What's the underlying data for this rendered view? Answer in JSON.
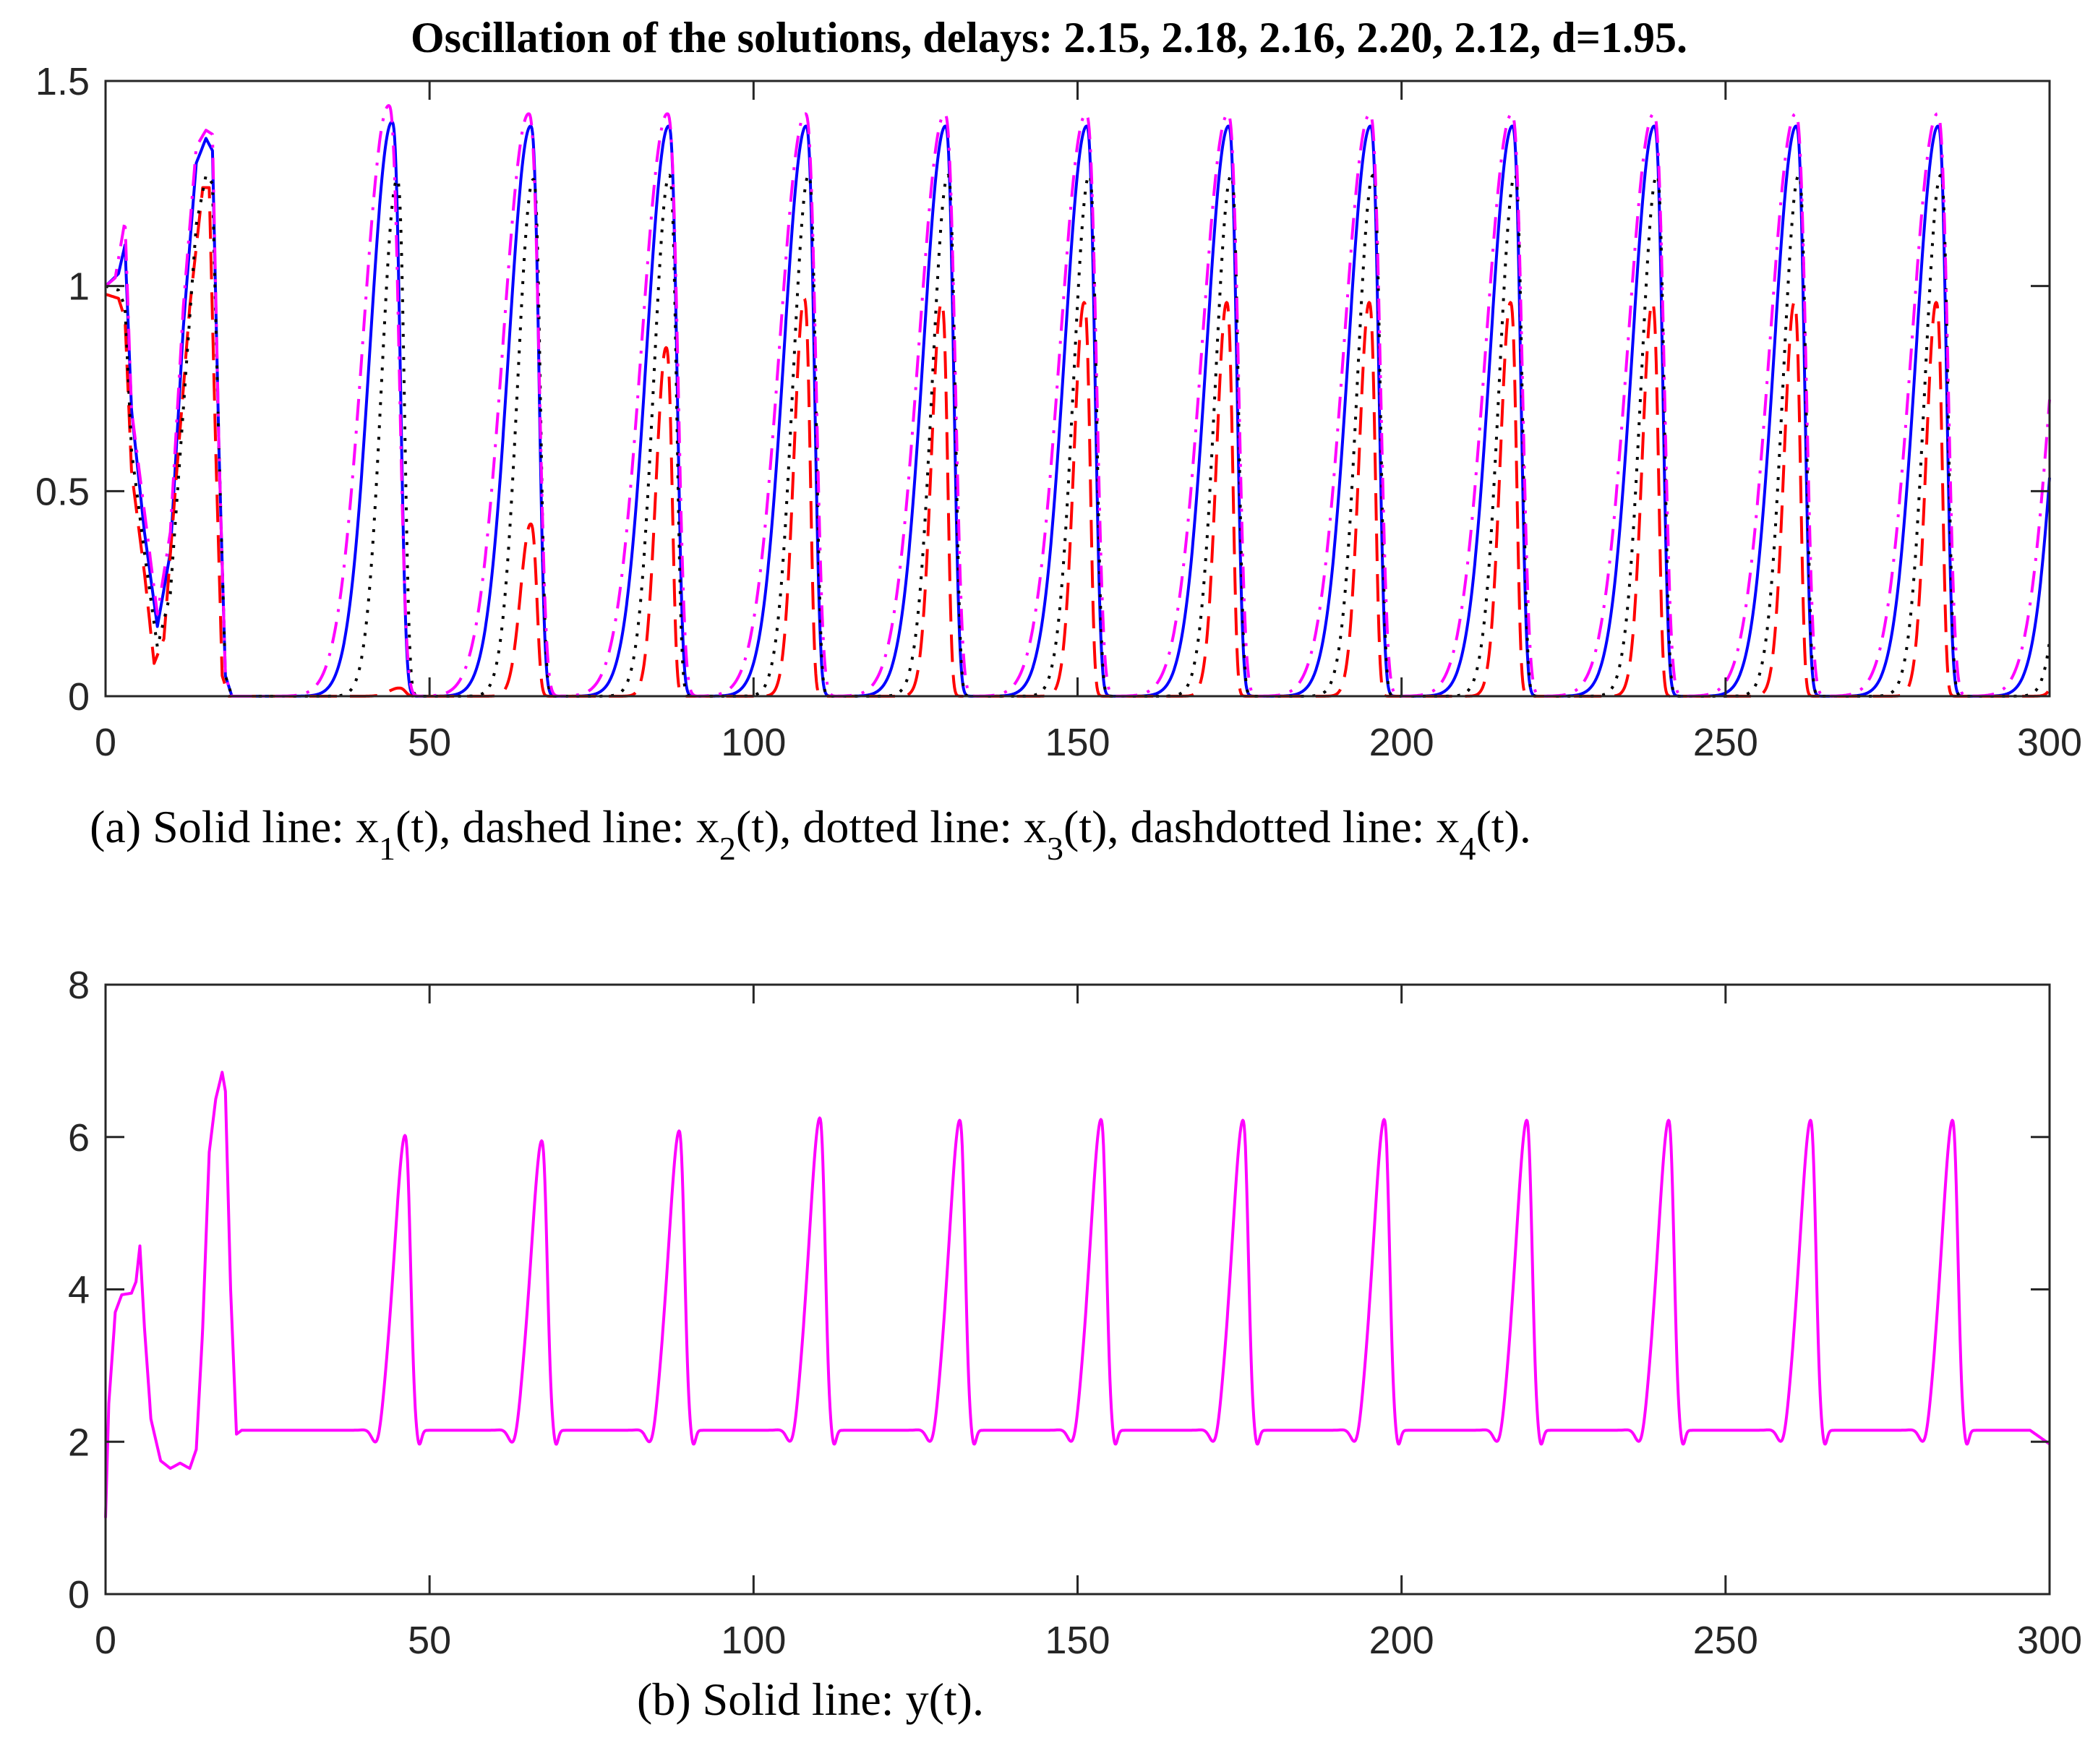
{
  "chart_data": [
    {
      "type": "line",
      "title": "Oscillation of the solutions, delays: 2.15, 2.18, 2.16, 2.20, 2.12, d=1.95.",
      "caption": {
        "prefix": "(a) Solid line: x",
        "parts": [
          {
            "sub": "1",
            "text": "(t), dashed line: x"
          },
          {
            "sub": "2",
            "text": "(t), dotted line: x"
          },
          {
            "sub": "3",
            "text": "(t), dashdotted line: x"
          },
          {
            "sub": "4",
            "text": "(t)."
          }
        ]
      },
      "xlabel": "",
      "ylabel": "",
      "xlim": [
        0,
        300
      ],
      "ylim": [
        0,
        1.5
      ],
      "xticks": [
        "0",
        "50",
        "100",
        "150",
        "200",
        "250",
        "300"
      ],
      "xtick_values": [
        0,
        50,
        100,
        150,
        200,
        250,
        300
      ],
      "yticks": [
        "0",
        "0.5",
        "1",
        "1.5"
      ],
      "ytick_values": [
        0,
        0.5,
        1,
        1.5
      ],
      "grid": false,
      "period": 21.9,
      "series": [
        {
          "name": "x1(t)",
          "style": "solid",
          "color": "#0000ff",
          "initial_points": [
            [
              0,
              1.0
            ],
            [
              2,
              1.03
            ],
            [
              3,
              1.1
            ],
            [
              4,
              0.7
            ],
            [
              6,
              0.4
            ],
            [
              8,
              0.17
            ],
            [
              10,
              0.35
            ],
            [
              12,
              0.9
            ],
            [
              14,
              1.3
            ],
            [
              15.5,
              1.36
            ],
            [
              16.5,
              1.33
            ],
            [
              17.5,
              0.6
            ],
            [
              18.5,
              0.05
            ],
            [
              19.5,
              0.0
            ]
          ],
          "peak_times": [
            44.2,
            65.6,
            86.9,
            108.1,
            129.6,
            151.4,
            173.3,
            195.2,
            217.1,
            239.0,
            260.9,
            282.8
          ],
          "peak_values": [
            1.4,
            1.39,
            1.39,
            1.39,
            1.39,
            1.39,
            1.39,
            1.39,
            1.39,
            1.39,
            1.39,
            1.39
          ],
          "rise": 4.8,
          "fall": 1.6
        },
        {
          "name": "x2(t)",
          "style": "dashed",
          "color": "#ff0000",
          "initial_points": [
            [
              0,
              0.98
            ],
            [
              2,
              0.97
            ],
            [
              3,
              0.92
            ],
            [
              4,
              0.55
            ],
            [
              6,
              0.3
            ],
            [
              7.5,
              0.08
            ],
            [
              9,
              0.14
            ],
            [
              11,
              0.55
            ],
            [
              13,
              0.95
            ],
            [
              15,
              1.24
            ],
            [
              16,
              1.24
            ],
            [
              17,
              0.6
            ],
            [
              18,
              0.05
            ],
            [
              19,
              0.0
            ]
          ],
          "peak_times": [
            45.3,
            65.6,
            86.5,
            107.8,
            129.0,
            151.0,
            173.0,
            195.0,
            216.8,
            238.7,
            260.6,
            282.5
          ],
          "peak_values": [
            0.02,
            0.42,
            0.85,
            0.97,
            0.96,
            0.96,
            0.96,
            0.96,
            0.96,
            0.96,
            0.96,
            0.96
          ],
          "rise": 2.2,
          "fall": 1.2
        },
        {
          "name": "x3(t)",
          "style": "dotted",
          "color": "#000000",
          "initial_points": [
            [
              0,
              1.0
            ],
            [
              2,
              0.99
            ],
            [
              3,
              0.95
            ],
            [
              4,
              0.6
            ],
            [
              6,
              0.35
            ],
            [
              8,
              0.12
            ],
            [
              10,
              0.25
            ],
            [
              12,
              0.7
            ],
            [
              14,
              1.15
            ],
            [
              15.5,
              1.27
            ],
            [
              16.5,
              1.25
            ],
            [
              17.5,
              0.6
            ],
            [
              18.5,
              0.05
            ],
            [
              19.5,
              0.0
            ]
          ],
          "peak_times": [
            45.0,
            66.0,
            87.0,
            108.5,
            130.0,
            151.8,
            173.7,
            195.6,
            217.5,
            239.4,
            261.3,
            283.2
          ],
          "peak_values": [
            1.26,
            1.26,
            1.27,
            1.27,
            1.27,
            1.27,
            1.27,
            1.27,
            1.27,
            1.27,
            1.27,
            1.27
          ],
          "rise": 3.4,
          "fall": 1.4
        },
        {
          "name": "x4(t)",
          "style": "dashdotted",
          "color": "#ff00ff",
          "initial_points": [
            [
              0,
              1.0
            ],
            [
              1.5,
              1.02
            ],
            [
              3,
              1.16
            ],
            [
              4,
              0.7
            ],
            [
              6,
              0.45
            ],
            [
              8,
              0.2
            ],
            [
              10,
              0.4
            ],
            [
              12,
              0.95
            ],
            [
              14,
              1.34
            ],
            [
              15.5,
              1.38
            ],
            [
              16.5,
              1.37
            ],
            [
              17.5,
              0.6
            ],
            [
              18.5,
              0.05
            ],
            [
              19.5,
              0.0
            ]
          ],
          "peak_times": [
            43.7,
            65.3,
            86.7,
            108.0,
            129.5,
            151.3,
            173.2,
            195.1,
            217.0,
            238.9,
            260.8,
            282.7
          ],
          "peak_values": [
            1.44,
            1.42,
            1.42,
            1.42,
            1.42,
            1.42,
            1.42,
            1.42,
            1.42,
            1.42,
            1.42,
            1.42
          ],
          "rise": 5.6,
          "fall": 2.0
        }
      ]
    },
    {
      "type": "line",
      "title": "",
      "caption": "(b) Solid line: y(t).",
      "xlabel": "",
      "ylabel": "",
      "xlim": [
        0,
        300
      ],
      "ylim": [
        0,
        8
      ],
      "xticks": [
        "0",
        "50",
        "100",
        "150",
        "200",
        "250",
        "300"
      ],
      "xtick_values": [
        0,
        50,
        100,
        150,
        200,
        250,
        300
      ],
      "yticks": [
        "0",
        "2",
        "4",
        "6",
        "8"
      ],
      "ytick_values": [
        0,
        2,
        4,
        6,
        8
      ],
      "grid": false,
      "series": [
        {
          "name": "y(t)",
          "style": "solid",
          "color": "#ff00ff",
          "baseline": 2.15,
          "initial_points": [
            [
              0,
              1.0
            ],
            [
              0.5,
              2.5
            ],
            [
              1.5,
              3.7
            ],
            [
              2.5,
              3.93
            ],
            [
              4,
              3.95
            ],
            [
              4.7,
              4.1
            ],
            [
              5.3,
              4.57
            ],
            [
              6,
              3.5
            ],
            [
              7,
              2.3
            ],
            [
              8.5,
              1.75
            ],
            [
              10,
              1.65
            ],
            [
              11.5,
              1.72
            ],
            [
              13,
              1.65
            ],
            [
              14,
              1.9
            ],
            [
              15,
              3.5
            ],
            [
              16,
              5.8
            ],
            [
              17,
              6.5
            ],
            [
              18,
              6.85
            ],
            [
              18.5,
              6.6
            ],
            [
              19.3,
              4.0
            ],
            [
              20.2,
              2.1
            ],
            [
              21,
              2.15
            ]
          ],
          "peak_times": [
            46.2,
            67.3,
            88.5,
            110.2,
            131.8,
            153.6,
            175.5,
            197.3,
            219.3,
            241.2,
            263.1,
            285.0
          ],
          "peak_values": [
            6.02,
            5.95,
            6.08,
            6.25,
            6.22,
            6.23,
            6.22,
            6.23,
            6.22,
            6.22,
            6.22,
            6.22
          ],
          "end_value": 1.97
        }
      ]
    }
  ]
}
